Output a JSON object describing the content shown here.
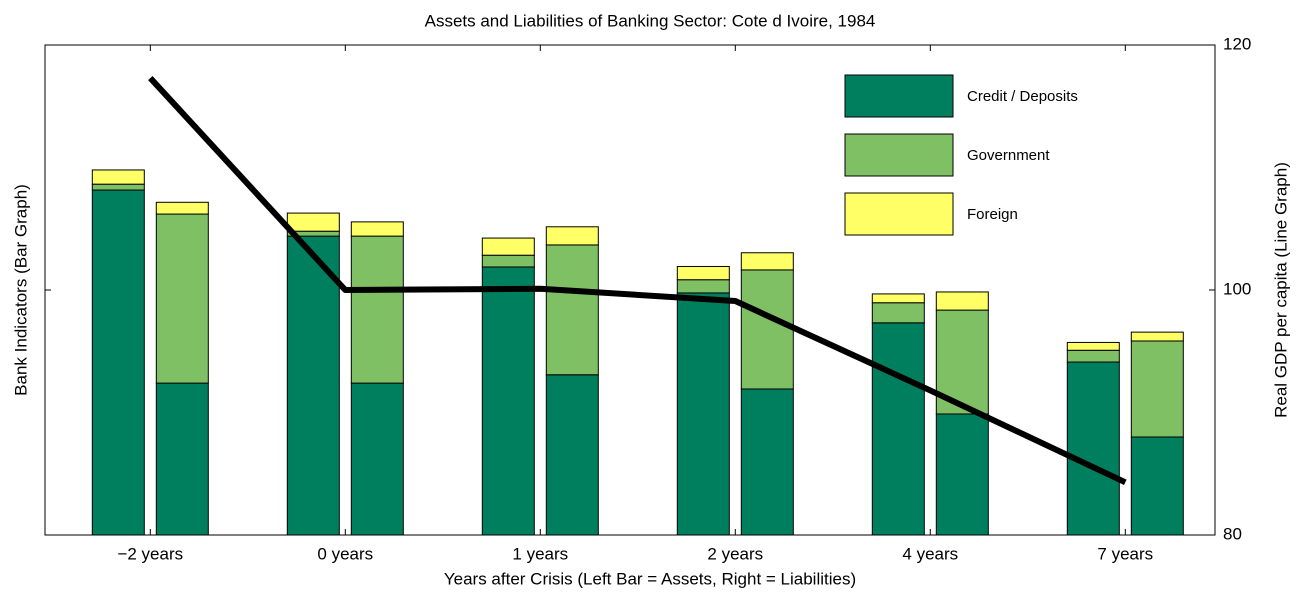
{
  "chart_data": {
    "type": "grouped-stacked-bar-line",
    "title": "Assets and Liabilities of Banking Sector: Cote d Ivoire, 1984",
    "x_label": "Years after Crisis (Left Bar = Assets, Right = Liabilities)",
    "y_label": "Bank Indicators (Bar Graph)",
    "y2_label": "Real GDP per capita (Line Graph)",
    "categories": [
      "−2 years",
      "0 years",
      "1 years",
      "2 years",
      "4 years",
      "7 years"
    ],
    "ylim": [
      0,
      1
    ],
    "y2lim": [
      80,
      120
    ],
    "y2ticks": [
      80,
      100,
      120
    ],
    "series": [
      {
        "name": "Credit / Deposits",
        "color": "#007f5f",
        "assets": [
          0.704,
          0.61,
          0.547,
          0.494,
          0.433,
          0.353
        ],
        "liabilities": [
          0.31,
          0.31,
          0.327,
          0.298,
          0.247,
          0.2
        ]
      },
      {
        "name": "Government",
        "color": "#80c064",
        "assets": [
          0.012,
          0.01,
          0.024,
          0.027,
          0.041,
          0.024
        ],
        "liabilities": [
          0.345,
          0.3,
          0.265,
          0.243,
          0.212,
          0.196
        ]
      },
      {
        "name": "Foreign",
        "color": "#ffff66",
        "assets": [
          0.029,
          0.037,
          0.035,
          0.027,
          0.018,
          0.016
        ],
        "liabilities": [
          0.024,
          0.029,
          0.037,
          0.035,
          0.037,
          0.018
        ]
      }
    ],
    "line": {
      "axis": "y2",
      "color": "#000000",
      "values": [
        117.3,
        100.0,
        100.1,
        99.1,
        91.8,
        84.3
      ]
    }
  }
}
